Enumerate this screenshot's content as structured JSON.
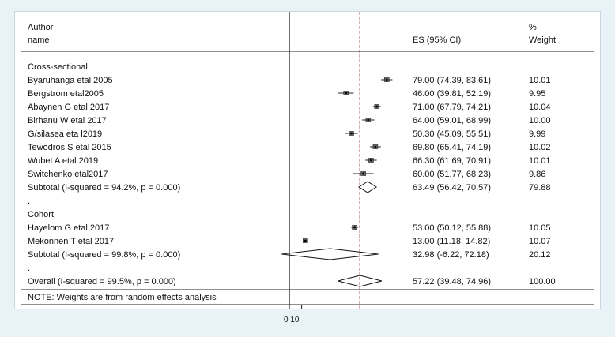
{
  "chart_data": {
    "type": "forest",
    "header": {
      "author": "Author",
      "name": "name",
      "es": "ES (95% CI)",
      "pct": "%",
      "weight": "Weight"
    },
    "x_ticks": [
      "0",
      "10"
    ],
    "overall_es": 57.22,
    "rows": [
      {
        "kind": "group",
        "label": "Cross-sectional"
      },
      {
        "kind": "study",
        "label": "Byaruhanga etal 2005",
        "es": 79.0,
        "lo": 74.39,
        "hi": 83.61,
        "ci": "79.00 (74.39, 83.61)",
        "weight": "10.01"
      },
      {
        "kind": "study",
        "label": "Bergstrom etal2005",
        "es": 46.0,
        "lo": 39.81,
        "hi": 52.19,
        "ci": "46.00 (39.81, 52.19)",
        "weight": "9.95"
      },
      {
        "kind": "study",
        "label": "Abayneh G etal 2017",
        "es": 71.0,
        "lo": 67.79,
        "hi": 74.21,
        "ci": "71.00 (67.79, 74.21)",
        "weight": "10.04"
      },
      {
        "kind": "study",
        "label": "Birhanu W etal 2017",
        "es": 64.0,
        "lo": 59.01,
        "hi": 68.99,
        "ci": "64.00 (59.01, 68.99)",
        "weight": "10.00"
      },
      {
        "kind": "study",
        "label": "G/silasea eta l2019",
        "es": 50.3,
        "lo": 45.09,
        "hi": 55.51,
        "ci": "50.30 (45.09, 55.51)",
        "weight": "9.99"
      },
      {
        "kind": "study",
        "label": "Tewodros S etal 2015",
        "es": 69.8,
        "lo": 65.41,
        "hi": 74.19,
        "ci": "69.80 (65.41, 74.19)",
        "weight": "10.02"
      },
      {
        "kind": "study",
        "label": "Wubet A etal 2019",
        "es": 66.3,
        "lo": 61.69,
        "hi": 70.91,
        "ci": "66.30 (61.69, 70.91)",
        "weight": "10.01"
      },
      {
        "kind": "study",
        "label": "Switchenko etal2017",
        "es": 60.0,
        "lo": 51.77,
        "hi": 68.23,
        "ci": "60.00 (51.77, 68.23)",
        "weight": "9.86"
      },
      {
        "kind": "subtotal",
        "label": "Subtotal  (I-squared = 94.2%, p = 0.000)",
        "es": 63.49,
        "lo": 56.42,
        "hi": 70.57,
        "ci": "63.49 (56.42, 70.57)",
        "weight": "79.88"
      },
      {
        "kind": "text",
        "label": "."
      },
      {
        "kind": "group",
        "label": "Cohort"
      },
      {
        "kind": "study",
        "label": "Hayelom G etal 2017",
        "es": 53.0,
        "lo": 50.12,
        "hi": 55.88,
        "ci": "53.00 (50.12, 55.88)",
        "weight": "10.05"
      },
      {
        "kind": "study",
        "label": "Mekonnen T etal 2017",
        "es": 13.0,
        "lo": 11.18,
        "hi": 14.82,
        "ci": "13.00 (11.18, 14.82)",
        "weight": "10.07"
      },
      {
        "kind": "subtotal",
        "label": "Subtotal  (I-squared = 99.8%, p = 0.000)",
        "es": 32.98,
        "lo": -6.22,
        "hi": 72.18,
        "ci": "32.98 (-6.22, 72.18)",
        "weight": "20.12"
      },
      {
        "kind": "text",
        "label": "."
      },
      {
        "kind": "overall",
        "label": "Overall  (I-squared = 99.5%, p = 0.000)",
        "es": 57.22,
        "lo": 39.48,
        "hi": 74.96,
        "ci": "57.22 (39.48, 74.96)",
        "weight": "100.00"
      }
    ],
    "note": "NOTE: Weights are from random effects analysis"
  }
}
